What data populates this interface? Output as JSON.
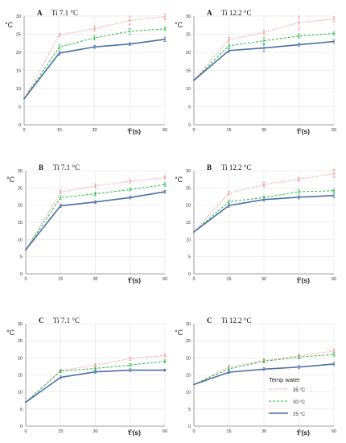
{
  "colors": {
    "35": "#f08a8a",
    "30": "#22bb44",
    "25": "#4a6fa5",
    "grid": "#dcdcdc",
    "axis": "#888888"
  },
  "legend": {
    "title": "Temp water",
    "items": [
      "35 °C",
      "30 °C",
      "25 °C"
    ]
  },
  "chart_data": [
    {
      "type": "line",
      "panel_label": "A",
      "title": "Ti 7.1 °C",
      "ylabel": "°C",
      "xlabel": "t (s)",
      "x": [
        0,
        15,
        30,
        45,
        60
      ],
      "ylim": [
        0,
        30
      ],
      "yticks": [
        "0",
        "5",
        "10",
        "15",
        "20",
        "25",
        "30"
      ],
      "xticks": [
        "0",
        "15",
        "30",
        "45",
        "60"
      ],
      "series": [
        {
          "name": "35 °C",
          "values": [
            7.2,
            24.8,
            26.5,
            28.8,
            29.8
          ],
          "err": [
            0,
            0.4,
            0.6,
            1.2,
            0.8
          ]
        },
        {
          "name": "30 °C",
          "values": [
            7.2,
            21.5,
            24.0,
            25.8,
            26.5
          ],
          "err": [
            0,
            0.6,
            0.5,
            0.8,
            0.5
          ]
        },
        {
          "name": "25 °C",
          "values": [
            7.2,
            19.8,
            21.5,
            22.3,
            23.6
          ],
          "err": [
            0,
            0.6,
            0.4,
            0.4,
            0.6
          ]
        }
      ]
    },
    {
      "type": "line",
      "panel_label": "A",
      "title": "Ti 12.2 °C",
      "ylabel": "°C",
      "xlabel": "t (s)",
      "x": [
        0,
        15,
        30,
        45,
        60
      ],
      "ylim": [
        0,
        30
      ],
      "yticks": [
        "0",
        "5",
        "10",
        "15",
        "20",
        "25",
        "30"
      ],
      "xticks": [
        "0",
        "15",
        "30",
        "45",
        "60"
      ],
      "series": [
        {
          "name": "35 °C",
          "values": [
            12.3,
            23.5,
            25.5,
            28.2,
            29.2
          ],
          "err": [
            0,
            0.6,
            0.6,
            1.8,
            0.6
          ]
        },
        {
          "name": "30 °C",
          "values": [
            12.3,
            21.8,
            23.2,
            24.5,
            25.2
          ],
          "err": [
            0,
            0.5,
            0.8,
            0.6,
            0.4
          ]
        },
        {
          "name": "25 °C",
          "values": [
            12.3,
            20.5,
            21.2,
            22.1,
            23.0
          ],
          "err": [
            0,
            0.5,
            1.0,
            0.5,
            0.4
          ]
        }
      ]
    },
    {
      "type": "line",
      "panel_label": "B",
      "title": "Ti 7.1 °C",
      "ylabel": "°C",
      "xlabel": "t (s)",
      "x": [
        0,
        15,
        30,
        45,
        60
      ],
      "ylim": [
        0,
        30
      ],
      "yticks": [
        "0",
        "5",
        "10",
        "15",
        "20",
        "25",
        "30"
      ],
      "xticks": [
        "0",
        "15",
        "30",
        "45",
        "60"
      ],
      "series": [
        {
          "name": "35 °C",
          "values": [
            7.0,
            23.8,
            25.6,
            26.9,
            28.0
          ],
          "err": [
            0,
            0.5,
            0.5,
            0.5,
            0.5
          ]
        },
        {
          "name": "30 °C",
          "values": [
            7.0,
            22.2,
            23.3,
            24.5,
            26.0
          ],
          "err": [
            0,
            0.5,
            0.5,
            0.4,
            0.5
          ]
        },
        {
          "name": "25 °C",
          "values": [
            7.0,
            19.8,
            20.9,
            22.2,
            23.9
          ],
          "err": [
            0,
            0.5,
            0.4,
            0.4,
            0.4
          ]
        }
      ]
    },
    {
      "type": "line",
      "panel_label": "B",
      "title": "Ti 12.2 °C",
      "ylabel": "°C",
      "xlabel": "t (s)",
      "x": [
        0,
        15,
        30,
        45,
        60
      ],
      "ylim": [
        0,
        30
      ],
      "yticks": [
        "0",
        "5",
        "10",
        "15",
        "20",
        "25",
        "30"
      ],
      "xticks": [
        "0",
        "15",
        "30",
        "45",
        "60"
      ],
      "series": [
        {
          "name": "35 °C",
          "values": [
            12.2,
            23.5,
            26.0,
            27.5,
            29.2
          ],
          "err": [
            0,
            0.5,
            0.6,
            0.5,
            1.2
          ]
        },
        {
          "name": "30 °C",
          "values": [
            12.2,
            21.0,
            22.2,
            23.9,
            24.2
          ],
          "err": [
            0,
            0.5,
            0.5,
            0.5,
            0.4
          ]
        },
        {
          "name": "25 °C",
          "values": [
            12.2,
            19.9,
            21.6,
            22.3,
            22.8
          ],
          "err": [
            0,
            0.5,
            0.5,
            0.5,
            0.6
          ]
        }
      ]
    },
    {
      "type": "line",
      "panel_label": "C",
      "title": "Ti 7.1 °C",
      "ylabel": "°C",
      "xlabel": "t (s)",
      "x": [
        0,
        15,
        30,
        45,
        60
      ],
      "ylim": [
        0,
        30
      ],
      "yticks": [
        "0",
        "5",
        "10",
        "15",
        "20",
        "25",
        "30"
      ],
      "xticks": [
        "0",
        "15",
        "30",
        "45",
        "60"
      ],
      "series": [
        {
          "name": "35 °C",
          "values": [
            7.0,
            16.3,
            17.8,
            19.8,
            20.7
          ],
          "err": [
            0,
            0.4,
            0.5,
            0.5,
            0.4
          ]
        },
        {
          "name": "30 °C",
          "values": [
            7.0,
            16.1,
            16.9,
            17.9,
            19.0
          ],
          "err": [
            0,
            0.4,
            0.4,
            0.4,
            0.4
          ]
        },
        {
          "name": "25 °C",
          "values": [
            7.0,
            14.3,
            15.9,
            16.4,
            16.4
          ],
          "err": [
            0,
            0.4,
            0.4,
            0.4,
            0.3
          ]
        }
      ]
    },
    {
      "type": "line",
      "panel_label": "C",
      "title": "Ti 12.2 °C",
      "ylabel": "°C",
      "xlabel": "t (s)",
      "x": [
        0,
        15,
        30,
        45,
        60
      ],
      "ylim": [
        0,
        30
      ],
      "yticks": [
        "0",
        "5",
        "10",
        "15",
        "20",
        "25",
        "30"
      ],
      "xticks": [
        "0",
        "15",
        "30",
        "45",
        "60"
      ],
      "series": [
        {
          "name": "35 °C",
          "values": [
            12.2,
            17.3,
            19.2,
            20.6,
            22.0
          ],
          "err": [
            0,
            0.6,
            0.6,
            0.6,
            0.6
          ]
        },
        {
          "name": "30 °C",
          "values": [
            12.2,
            16.8,
            19.0,
            20.2,
            21.0
          ],
          "err": [
            0,
            0.5,
            0.5,
            0.5,
            0.5
          ]
        },
        {
          "name": "25 °C",
          "values": [
            12.2,
            15.8,
            16.7,
            17.3,
            18.2
          ],
          "err": [
            0,
            0.4,
            0.4,
            0.5,
            0.5
          ]
        }
      ]
    }
  ]
}
